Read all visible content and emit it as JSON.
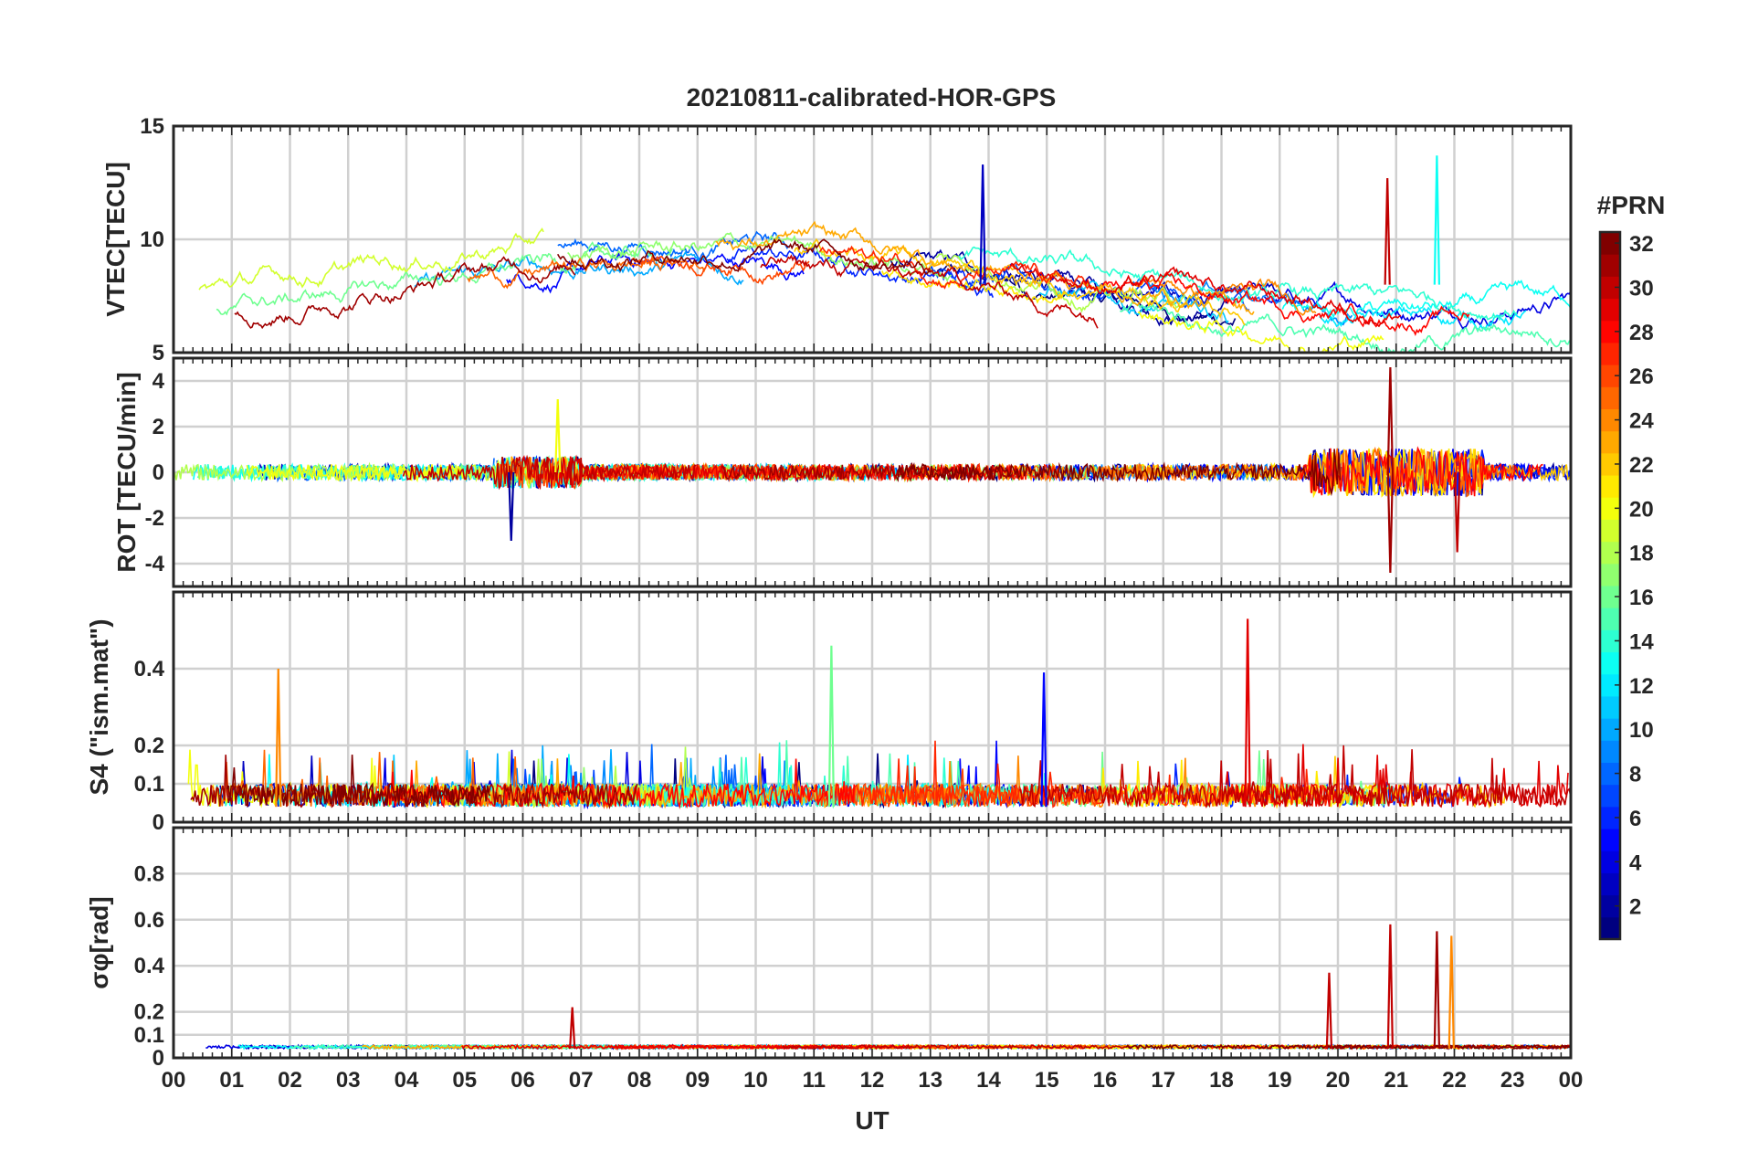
{
  "chart_data": {
    "type": "line",
    "title": "20210811-calibrated-HOR-GPS",
    "xlabel": "UT",
    "x_ticks": [
      "00",
      "01",
      "02",
      "03",
      "04",
      "05",
      "06",
      "07",
      "08",
      "09",
      "10",
      "11",
      "12",
      "13",
      "14",
      "15",
      "16",
      "17",
      "18",
      "19",
      "20",
      "21",
      "22",
      "23",
      "00"
    ],
    "xlim": [
      0,
      24
    ],
    "grid": true,
    "colorbar": {
      "title": "#PRN",
      "range": [
        1,
        32
      ],
      "ticks": [
        2,
        4,
        6,
        8,
        10,
        12,
        14,
        16,
        18,
        20,
        22,
        24,
        26,
        28,
        30,
        32
      ],
      "colormap": "jet"
    },
    "panels": [
      {
        "id": "vtec",
        "ylabel": "VTEC[TECU]",
        "ylim": [
          5,
          15
        ],
        "yticks": [
          5,
          10,
          15
        ],
        "baseline": 8.0,
        "spread": 1.6,
        "trend": "diurnal"
      },
      {
        "id": "rot",
        "ylabel": "ROT [TECU/min]",
        "ylim": [
          -5,
          5
        ],
        "yticks": [
          -4,
          -2,
          0,
          2,
          4
        ],
        "baseline": 0,
        "spread": 0.35,
        "trend": "noise"
      },
      {
        "id": "s4",
        "ylabel": "S4 (\"ism.mat\")",
        "ylim": [
          0,
          0.6
        ],
        "yticks": [
          0,
          0.1,
          0.2,
          0.4
        ],
        "baseline": 0.04,
        "spread": 0.05,
        "trend": "positive"
      },
      {
        "id": "sigphi",
        "ylabel": "σφ[rad]",
        "ylim": [
          0,
          1
        ],
        "yticks": [
          0,
          0.1,
          0.2,
          0.4,
          0.6,
          0.8
        ],
        "baseline": 0.04,
        "spread": 0.015,
        "trend": "positive"
      }
    ],
    "notable_peaks": [
      {
        "panel": "vtec",
        "x": 13.9,
        "y": 13.3,
        "prn": 3
      },
      {
        "panel": "vtec",
        "x": 21.7,
        "y": 13.7,
        "prn": 13
      },
      {
        "panel": "vtec",
        "x": 20.85,
        "y": 12.7,
        "prn": 30
      },
      {
        "panel": "rot",
        "x": 20.9,
        "y": 4.6,
        "prn": 31
      },
      {
        "panel": "rot",
        "x": 20.9,
        "y": -4.4,
        "prn": 31
      },
      {
        "panel": "rot",
        "x": 6.6,
        "y": 3.2,
        "prn": 20
      },
      {
        "panel": "rot",
        "x": 5.8,
        "y": -3.0,
        "prn": 2
      },
      {
        "panel": "rot",
        "x": 22.05,
        "y": -3.5,
        "prn": 30
      },
      {
        "panel": "s4",
        "x": 18.45,
        "y": 0.53,
        "prn": 29
      },
      {
        "panel": "s4",
        "x": 11.3,
        "y": 0.46,
        "prn": 16
      },
      {
        "panel": "s4",
        "x": 14.95,
        "y": 0.39,
        "prn": 5
      },
      {
        "panel": "s4",
        "x": 1.8,
        "y": 0.4,
        "prn": 24
      },
      {
        "panel": "sigphi",
        "x": 20.9,
        "y": 0.58,
        "prn": 30
      },
      {
        "panel": "sigphi",
        "x": 21.95,
        "y": 0.53,
        "prn": 24
      },
      {
        "panel": "sigphi",
        "x": 21.7,
        "y": 0.55,
        "prn": 31
      },
      {
        "panel": "sigphi",
        "x": 19.85,
        "y": 0.37,
        "prn": 30
      },
      {
        "panel": "sigphi",
        "x": 6.85,
        "y": 0.22,
        "prn": 30
      }
    ]
  }
}
